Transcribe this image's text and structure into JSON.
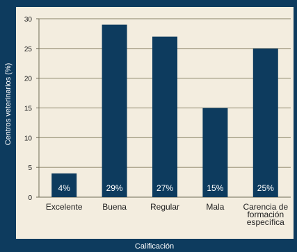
{
  "chart_data": {
    "type": "bar",
    "title": "",
    "xlabel": "Calificación",
    "ylabel": "Centros veterinarios (%)",
    "ylim": [
      0,
      30
    ],
    "yticks": [
      0,
      5,
      10,
      15,
      20,
      25,
      30
    ],
    "grid": true,
    "categories": [
      [
        "Excelente"
      ],
      [
        "Buena"
      ],
      [
        "Regular"
      ],
      [
        "Mala"
      ],
      [
        "Carencia de",
        "formación",
        "específica"
      ]
    ],
    "values": [
      4,
      29,
      27,
      15,
      25
    ],
    "data_labels": [
      "4%",
      "29%",
      "27%",
      "15%",
      "25%"
    ],
    "colors": {
      "frame": "#0d3b5e",
      "plot_bg": "#f3eddf",
      "bar": "#0d3b5e",
      "grid": "#8a8468",
      "axis": "#6e6a55",
      "text": "#222222",
      "label_on_dark": "#ffffff"
    }
  }
}
